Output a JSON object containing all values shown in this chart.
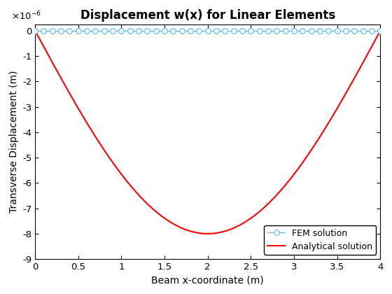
{
  "title": "Displacement w(x) for Linear Elements",
  "xlabel": "Beam x-coordinate (m)",
  "ylabel": "Transverse Displacement (m)",
  "L": 4.0,
  "n_fem_points": 41,
  "analytical_amplitude": -8e-06,
  "ylim": [
    -9e-06,
    2.5e-07
  ],
  "xlim": [
    0,
    4
  ],
  "xticks": [
    0,
    0.5,
    1,
    1.5,
    2,
    2.5,
    3,
    3.5,
    4
  ],
  "yticks": [
    0,
    -1e-06,
    -2e-06,
    -3e-06,
    -4e-06,
    -5e-06,
    -6e-06,
    -7e-06,
    -8e-06,
    -9e-06
  ],
  "fem_color": "#4db8ff",
  "fem_markerfacecolor": "white",
  "fem_markersize": 5.5,
  "fem_linewidth": 0.8,
  "analytical_color": "#ff0000",
  "analytical_linewidth": 1.5,
  "legend_loc": "lower right",
  "fem_label": "FEM solution",
  "analytical_label": "Analytical solution",
  "title_fontsize": 12,
  "axis_label_fontsize": 10,
  "tick_fontsize": 9.5,
  "legend_fontsize": 9
}
